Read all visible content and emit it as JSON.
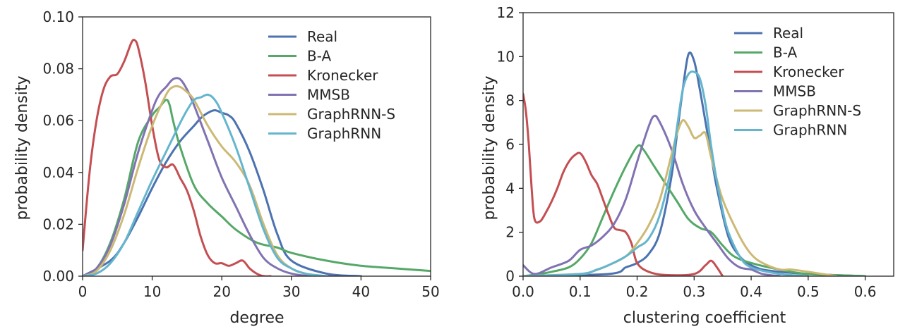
{
  "series_colors": {
    "Real": "#4c72b0",
    "B-A": "#55a868",
    "Kronecker": "#c44e52",
    "MMSB": "#8172b2",
    "GraphRNN-S": "#ccb974",
    "GraphRNN": "#64b5cd"
  },
  "chart_data": [
    {
      "type": "line",
      "title": "",
      "xlabel": "degree",
      "ylabel": "probability density",
      "xlim": [
        0,
        50
      ],
      "ylim": [
        0,
        0.1
      ],
      "xticks": [
        0,
        10,
        20,
        30,
        40,
        50
      ],
      "xtick_labels": [
        "0",
        "10",
        "20",
        "30",
        "40",
        "50"
      ],
      "yticks": [
        0,
        0.02,
        0.04,
        0.06,
        0.08,
        0.1
      ],
      "ytick_labels": [
        "0.00",
        "0.02",
        "0.04",
        "0.06",
        "0.08",
        "0.10"
      ],
      "grid": false,
      "legend_position": "top-right",
      "series": [
        {
          "name": "Real",
          "x": [
            0,
            4,
            6,
            8,
            10,
            12,
            14,
            16,
            17,
            18,
            19,
            20,
            21,
            22,
            24,
            26,
            28,
            30,
            35,
            40
          ],
          "y": [
            0,
            0.006,
            0.013,
            0.023,
            0.034,
            0.044,
            0.052,
            0.058,
            0.061,
            0.063,
            0.064,
            0.063,
            0.062,
            0.059,
            0.048,
            0.033,
            0.016,
            0.006,
            0.001,
            0
          ]
        },
        {
          "name": "B-A",
          "x": [
            0,
            2,
            4,
            6,
            8,
            10,
            11,
            12,
            12.5,
            13,
            14,
            16,
            18,
            20,
            22,
            25,
            28,
            30,
            35,
            40,
            45,
            50
          ],
          "y": [
            0,
            0.003,
            0.013,
            0.03,
            0.052,
            0.062,
            0.065,
            0.068,
            0.066,
            0.06,
            0.05,
            0.035,
            0.028,
            0.023,
            0.018,
            0.013,
            0.011,
            0.009,
            0.006,
            0.004,
            0.003,
            0.002
          ]
        },
        {
          "name": "Kronecker",
          "x": [
            0,
            1,
            2,
            3,
            4,
            5,
            6,
            7,
            7.5,
            8,
            9,
            10,
            11,
            12,
            13,
            14,
            15,
            16,
            17,
            18,
            19,
            20,
            21,
            22,
            23,
            24,
            25,
            26,
            27
          ],
          "y": [
            0.01,
            0.04,
            0.06,
            0.072,
            0.077,
            0.078,
            0.083,
            0.09,
            0.091,
            0.088,
            0.075,
            0.058,
            0.045,
            0.042,
            0.043,
            0.038,
            0.033,
            0.025,
            0.015,
            0.008,
            0.005,
            0.005,
            0.004,
            0.005,
            0.006,
            0.003,
            0.001,
            0,
            0
          ]
        },
        {
          "name": "MMSB",
          "x": [
            0,
            2,
            4,
            6,
            8,
            10,
            11,
            12,
            13,
            14,
            15,
            16,
            18,
            20,
            22,
            24,
            26,
            28,
            30,
            33,
            36
          ],
          "y": [
            0,
            0.003,
            0.012,
            0.028,
            0.048,
            0.064,
            0.07,
            0.073,
            0.076,
            0.076,
            0.072,
            0.066,
            0.052,
            0.038,
            0.027,
            0.016,
            0.007,
            0.003,
            0.001,
            0,
            0
          ]
        },
        {
          "name": "GraphRNN-S",
          "x": [
            0,
            2,
            4,
            6,
            8,
            10,
            12,
            13,
            14,
            15,
            16,
            18,
            20,
            22,
            24,
            26,
            28,
            30,
            32,
            35
          ],
          "y": [
            0,
            0.002,
            0.01,
            0.024,
            0.042,
            0.058,
            0.07,
            0.073,
            0.073,
            0.071,
            0.068,
            0.058,
            0.05,
            0.044,
            0.035,
            0.02,
            0.008,
            0.003,
            0.001,
            0
          ]
        },
        {
          "name": "GraphRNN",
          "x": [
            0,
            2,
            4,
            6,
            8,
            10,
            12,
            14,
            15,
            16,
            17,
            18,
            19,
            20,
            22,
            24,
            26,
            28,
            30,
            32,
            35
          ],
          "y": [
            0,
            0.001,
            0.005,
            0.013,
            0.025,
            0.037,
            0.048,
            0.059,
            0.064,
            0.068,
            0.069,
            0.07,
            0.068,
            0.063,
            0.05,
            0.034,
            0.018,
            0.007,
            0.003,
            0.001,
            0
          ]
        }
      ]
    },
    {
      "type": "line",
      "title": "",
      "xlabel": "clustering coefficient",
      "ylabel": "probability density",
      "xlim": [
        0,
        0.65
      ],
      "ylim": [
        0,
        12
      ],
      "xticks": [
        0,
        0.1,
        0.2,
        0.3,
        0.4,
        0.5,
        0.6
      ],
      "xtick_labels": [
        "0.0",
        "0.1",
        "0.2",
        "0.3",
        "0.4",
        "0.5",
        "0.6"
      ],
      "yticks": [
        0,
        2,
        4,
        6,
        8,
        10,
        12
      ],
      "ytick_labels": [
        "0",
        "2",
        "4",
        "6",
        "8",
        "10",
        "12"
      ],
      "grid": false,
      "legend_position": "top-right",
      "series": [
        {
          "name": "Real",
          "x": [
            0,
            0.15,
            0.18,
            0.2,
            0.22,
            0.24,
            0.26,
            0.27,
            0.28,
            0.29,
            0.3,
            0.31,
            0.32,
            0.33,
            0.34,
            0.36,
            0.38,
            0.4,
            0.42,
            0.45,
            0.5,
            0.6
          ],
          "y": [
            0,
            0.1,
            0.4,
            0.6,
            1.0,
            2.0,
            4.5,
            6.5,
            8.5,
            10.1,
            9.8,
            8.5,
            7.0,
            5.5,
            4.0,
            1.8,
            0.9,
            0.5,
            0.3,
            0.2,
            0.1,
            0
          ]
        },
        {
          "name": "B-A",
          "x": [
            0,
            0.03,
            0.05,
            0.08,
            0.1,
            0.12,
            0.14,
            0.16,
            0.18,
            0.2,
            0.21,
            0.23,
            0.25,
            0.27,
            0.29,
            0.31,
            0.33,
            0.35,
            0.37,
            0.4,
            0.45,
            0.5,
            0.6
          ],
          "y": [
            0,
            0.1,
            0.2,
            0.4,
            0.8,
            1.5,
            2.7,
            3.9,
            5.0,
            5.9,
            5.8,
            5.0,
            4.2,
            3.4,
            2.6,
            2.2,
            2.0,
            1.4,
            0.9,
            0.6,
            0.3,
            0.1,
            0
          ]
        },
        {
          "name": "Kronecker",
          "x": [
            0,
            0.005,
            0.01,
            0.015,
            0.02,
            0.03,
            0.04,
            0.05,
            0.06,
            0.07,
            0.08,
            0.09,
            0.1,
            0.11,
            0.12,
            0.13,
            0.14,
            0.15,
            0.16,
            0.17,
            0.18,
            0.19,
            0.2,
            0.22,
            0.25,
            0.3,
            0.32,
            0.33,
            0.34,
            0.35
          ],
          "y": [
            8.3,
            7.5,
            6.0,
            4.0,
            2.6,
            2.5,
            2.9,
            3.4,
            4.0,
            4.7,
            5.2,
            5.5,
            5.6,
            5.2,
            4.6,
            4.2,
            3.5,
            2.8,
            2.2,
            2.1,
            2.0,
            1.5,
            0.6,
            0.2,
            0.05,
            0.1,
            0.5,
            0.7,
            0.4,
            0
          ]
        },
        {
          "name": "MMSB",
          "x": [
            0,
            0.02,
            0.05,
            0.08,
            0.1,
            0.12,
            0.14,
            0.16,
            0.18,
            0.2,
            0.22,
            0.23,
            0.24,
            0.26,
            0.28,
            0.3,
            0.32,
            0.34,
            0.36,
            0.38,
            0.4,
            0.42,
            0.45
          ],
          "y": [
            0.5,
            0.1,
            0.4,
            0.7,
            1.2,
            1.4,
            1.8,
            2.4,
            3.5,
            5.2,
            6.8,
            7.3,
            7.0,
            5.8,
            4.2,
            3.0,
            2.2,
            1.5,
            0.8,
            0.4,
            0.3,
            0.1,
            0
          ]
        },
        {
          "name": "GraphRNN-S",
          "x": [
            0,
            0.1,
            0.12,
            0.15,
            0.18,
            0.2,
            0.22,
            0.24,
            0.26,
            0.27,
            0.28,
            0.29,
            0.3,
            0.31,
            0.32,
            0.33,
            0.35,
            0.38,
            0.4,
            0.42,
            0.45,
            0.47,
            0.5,
            0.55
          ],
          "y": [
            0,
            0.1,
            0.2,
            0.5,
            0.9,
            1.5,
            2.3,
            3.5,
            5.5,
            6.5,
            7.1,
            6.8,
            6.3,
            6.4,
            6.5,
            5.4,
            3.5,
            1.8,
            1.0,
            0.6,
            0.3,
            0.3,
            0.2,
            0
          ]
        },
        {
          "name": "GraphRNN",
          "x": [
            0,
            0.1,
            0.13,
            0.15,
            0.18,
            0.2,
            0.22,
            0.24,
            0.26,
            0.27,
            0.28,
            0.29,
            0.3,
            0.31,
            0.32,
            0.33,
            0.34,
            0.35,
            0.36,
            0.38,
            0.4,
            0.45,
            0.5
          ],
          "y": [
            0,
            0.1,
            0.3,
            0.5,
            0.9,
            1.3,
            1.7,
            2.8,
            5.0,
            6.8,
            8.5,
            9.2,
            9.3,
            9.0,
            7.8,
            5.9,
            4.3,
            3.0,
            2.0,
            0.9,
            0.4,
            0.1,
            0
          ]
        }
      ]
    }
  ]
}
